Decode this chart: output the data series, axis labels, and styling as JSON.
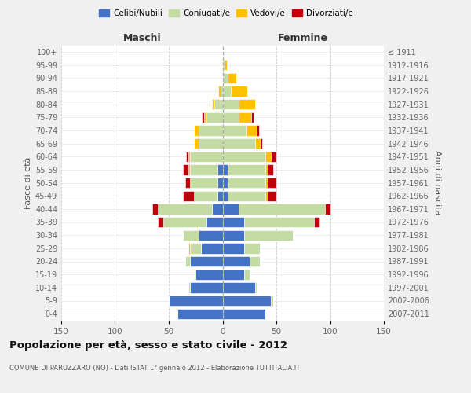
{
  "age_groups": [
    "0-4",
    "5-9",
    "10-14",
    "15-19",
    "20-24",
    "25-29",
    "30-34",
    "35-39",
    "40-44",
    "45-49",
    "50-54",
    "55-59",
    "60-64",
    "65-69",
    "70-74",
    "75-79",
    "80-84",
    "85-89",
    "90-94",
    "95-99",
    "100+"
  ],
  "birth_years": [
    "2007-2011",
    "2002-2006",
    "1997-2001",
    "1992-1996",
    "1987-1991",
    "1982-1986",
    "1977-1981",
    "1972-1976",
    "1967-1971",
    "1962-1966",
    "1957-1961",
    "1952-1956",
    "1947-1951",
    "1942-1946",
    "1937-1941",
    "1932-1936",
    "1927-1931",
    "1922-1926",
    "1917-1921",
    "1912-1916",
    "≤ 1911"
  ],
  "males_celibi": [
    42,
    50,
    30,
    25,
    30,
    20,
    22,
    15,
    10,
    5,
    5,
    5,
    0,
    0,
    0,
    0,
    0,
    0,
    0,
    0,
    0
  ],
  "males_coniugati": [
    0,
    0,
    2,
    2,
    5,
    10,
    15,
    40,
    50,
    22,
    25,
    25,
    30,
    22,
    22,
    15,
    8,
    2,
    0,
    0,
    0
  ],
  "males_vedovi": [
    0,
    0,
    0,
    0,
    0,
    2,
    0,
    0,
    0,
    0,
    0,
    2,
    2,
    5,
    5,
    2,
    2,
    2,
    0,
    0,
    0
  ],
  "males_divorziati": [
    0,
    0,
    0,
    0,
    0,
    0,
    0,
    5,
    5,
    10,
    5,
    5,
    2,
    0,
    0,
    2,
    0,
    0,
    0,
    0,
    0
  ],
  "females_nubili": [
    40,
    45,
    30,
    20,
    25,
    20,
    20,
    20,
    15,
    5,
    5,
    5,
    0,
    0,
    0,
    0,
    0,
    0,
    0,
    0,
    0
  ],
  "females_coniugate": [
    0,
    2,
    2,
    5,
    10,
    15,
    45,
    65,
    80,
    35,
    35,
    35,
    40,
    30,
    22,
    15,
    15,
    8,
    5,
    2,
    0
  ],
  "females_vedove": [
    0,
    0,
    0,
    0,
    0,
    0,
    0,
    0,
    0,
    2,
    2,
    2,
    5,
    5,
    10,
    12,
    15,
    15,
    8,
    2,
    0
  ],
  "females_divorziate": [
    0,
    0,
    0,
    0,
    0,
    0,
    0,
    5,
    5,
    8,
    8,
    5,
    5,
    2,
    2,
    2,
    0,
    0,
    0,
    0,
    0
  ],
  "color_celibi": "#4472c4",
  "color_coniugati": "#c5dba4",
  "color_vedovi": "#ffc000",
  "color_divorziati": "#c0000b",
  "title": "Popolazione per età, sesso e stato civile - 2012",
  "subtitle": "COMUNE DI PARUZZARO (NO) - Dati ISTAT 1° gennaio 2012 - Elaborazione TUTTITALIA.IT",
  "label_maschi": "Maschi",
  "label_femmine": "Femmine",
  "label_fascia": "Fasce di età",
  "label_anni": "Anni di nascita",
  "legend_labels": [
    "Celibi/Nubili",
    "Coniugati/e",
    "Vedovi/e",
    "Divorziati/e"
  ],
  "xlim": 150,
  "bg_color": "#f0f0f0",
  "plot_bg": "#ffffff"
}
